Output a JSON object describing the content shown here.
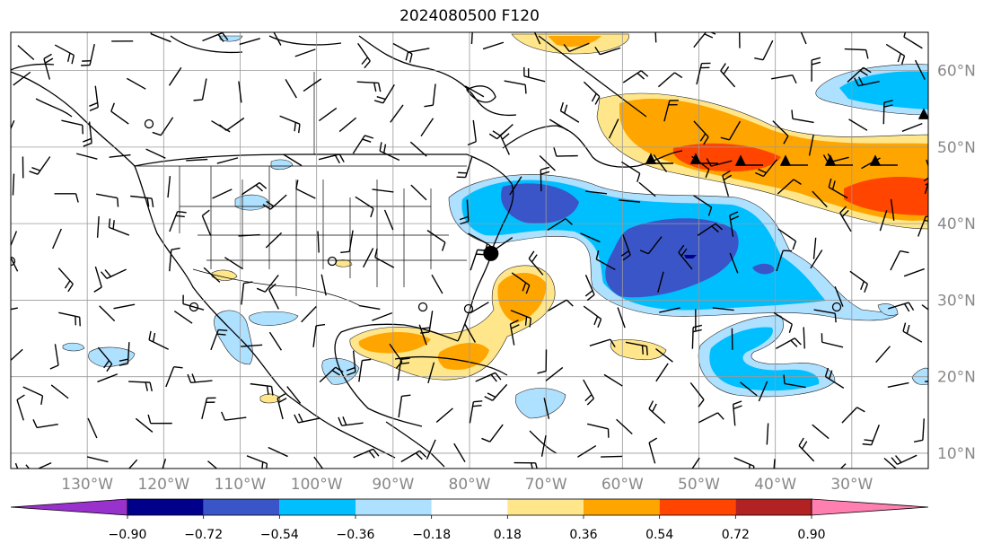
{
  "title": "2024080500 F120",
  "map": {
    "lon_labels": [
      "130°W",
      "120°W",
      "110°W",
      "100°W",
      "90°W",
      "80°W",
      "70°W",
      "60°W",
      "50°W",
      "40°W",
      "30°W"
    ],
    "lon_values": [
      -130,
      -120,
      -110,
      -100,
      -90,
      -80,
      -70,
      -60,
      -50,
      -40,
      -30
    ],
    "lat_labels": [
      "10°N",
      "20°N",
      "30°N",
      "40°N",
      "50°N",
      "60°N"
    ],
    "lat_values": [
      10,
      20,
      30,
      40,
      50,
      60
    ],
    "extent": {
      "lon": [
        -140,
        -20
      ],
      "lat": [
        8,
        65
      ]
    },
    "label_color": "#888888",
    "marker": {
      "name": "point-marker",
      "lon": -77.2,
      "lat": 36.1
    },
    "barb_color": "#000000"
  },
  "colorbar": {
    "tick_labels": [
      "−0.90",
      "−0.72",
      "−0.54",
      "−0.36",
      "−0.18",
      "0.18",
      "0.36",
      "0.54",
      "0.72",
      "0.90"
    ],
    "levels": [
      -0.9,
      -0.72,
      -0.54,
      -0.36,
      -0.18,
      0.18,
      0.36,
      0.54,
      0.72,
      0.9
    ],
    "colors": [
      "#9932cc",
      "#00008b",
      "#3a55c8",
      "#00bfff",
      "#aee0ff",
      "#ffffff",
      "#ffe68a",
      "#ffa500",
      "#ff4500",
      "#b22222",
      "#ff7fb0"
    ]
  }
}
